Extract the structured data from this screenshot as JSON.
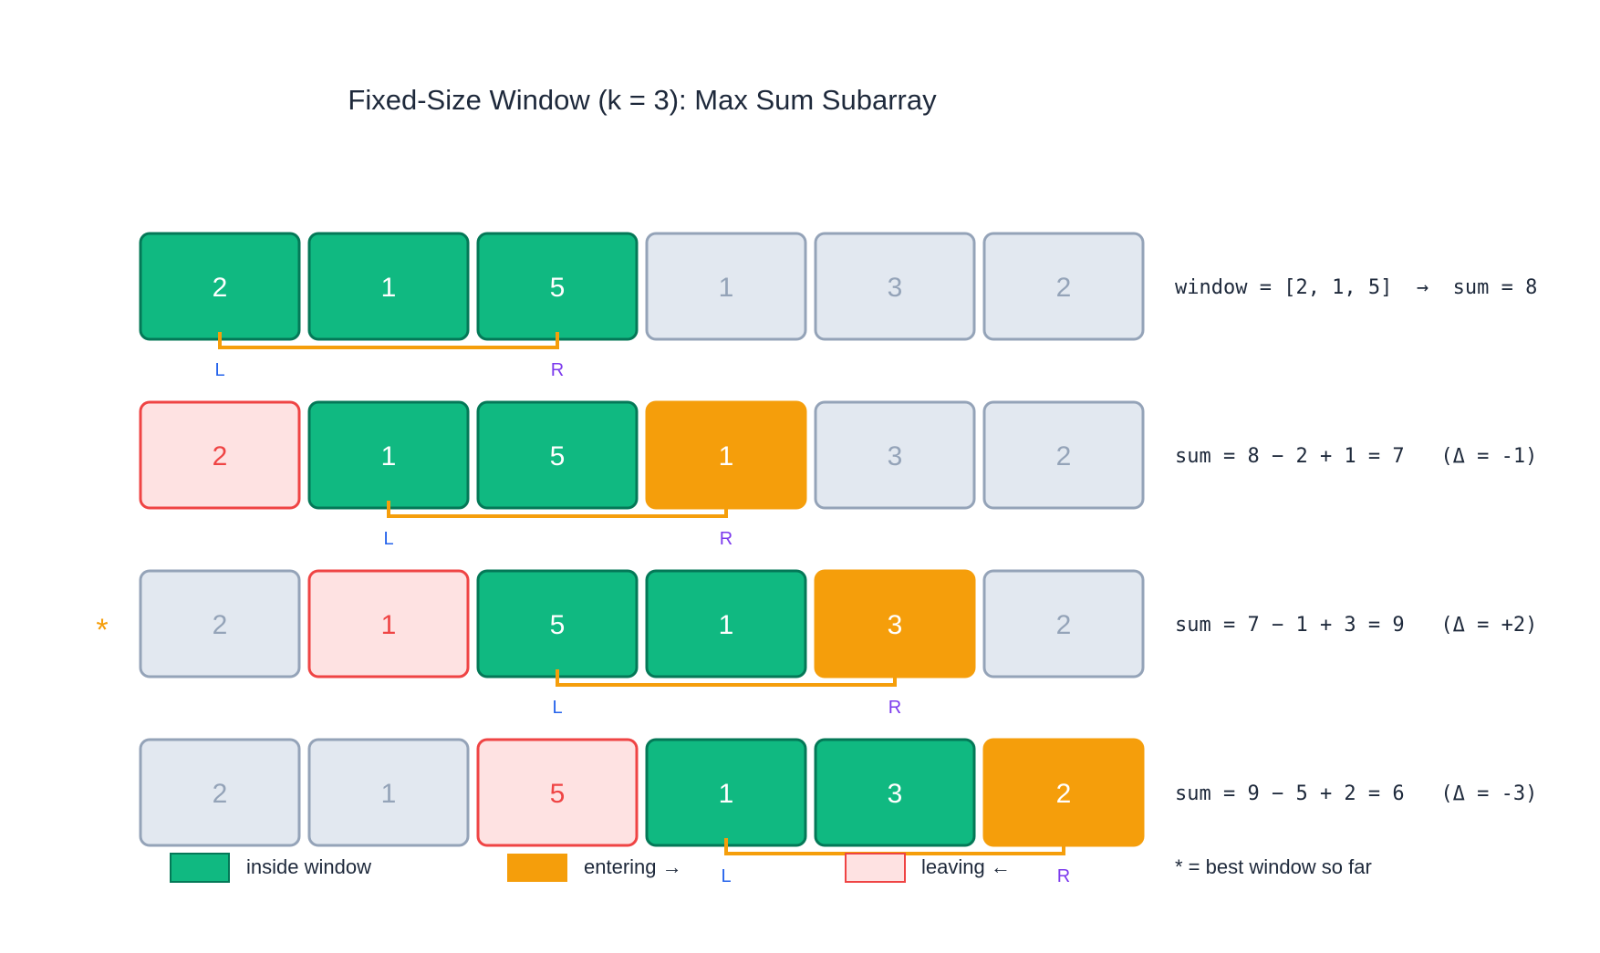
{
  "title": "Fixed-Size Window (k = 3): Max Sum Subarray",
  "colors": {
    "inside": "#10b981",
    "inside_stroke": "#047857",
    "entering": "#f59e0b",
    "leaving": "#fee2e2",
    "leaving_stroke": "#ef4444",
    "outside": "#e2e8f0",
    "outside_stroke": "#94a3b8",
    "L": "#2563eb",
    "R": "#7c3aed",
    "bracket": "#f59e0b",
    "star": "#f59e0b"
  },
  "rows": [
    {
      "values": [
        "2",
        "1",
        "5",
        "1",
        "3",
        "2"
      ],
      "states": [
        "inside",
        "inside",
        "inside",
        "outside",
        "outside",
        "outside"
      ],
      "L": 0,
      "R": 2,
      "best": false,
      "equation": "window = [2, 1, 5]  →  sum = 8"
    },
    {
      "values": [
        "2",
        "1",
        "5",
        "1",
        "3",
        "2"
      ],
      "states": [
        "leaving",
        "inside",
        "inside",
        "entering",
        "outside",
        "outside"
      ],
      "L": 1,
      "R": 3,
      "best": false,
      "equation": "sum = 8 − 2 + 1 = 7   (Δ = -1)"
    },
    {
      "values": [
        "2",
        "1",
        "5",
        "1",
        "3",
        "2"
      ],
      "states": [
        "outside",
        "leaving",
        "inside",
        "inside",
        "entering",
        "outside"
      ],
      "L": 2,
      "R": 4,
      "best": true,
      "equation": "sum = 7 − 1 + 3 = 9   (Δ = +2)"
    },
    {
      "values": [
        "2",
        "1",
        "5",
        "1",
        "3",
        "2"
      ],
      "states": [
        "outside",
        "outside",
        "leaving",
        "inside",
        "inside",
        "entering"
      ],
      "L": 3,
      "R": 5,
      "best": false,
      "equation": "sum = 9 − 5 + 2 = 6   (Δ = -3)"
    }
  ],
  "pointer_labels": {
    "L": "L",
    "R": "R"
  },
  "best_marker": "*",
  "legend": {
    "inside": "inside window",
    "entering": "entering →",
    "leaving": "leaving ←",
    "footnote": "*  = best window so far"
  }
}
